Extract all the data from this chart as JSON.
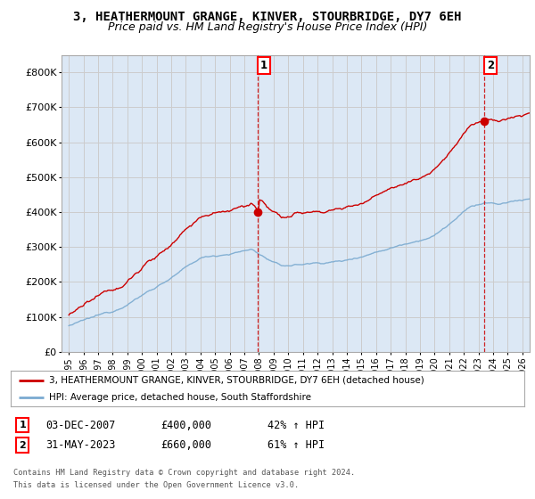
{
  "title": "3, HEATHERMOUNT GRANGE, KINVER, STOURBRIDGE, DY7 6EH",
  "subtitle": "Price paid vs. HM Land Registry's House Price Index (HPI)",
  "ylim": [
    0,
    850000
  ],
  "yticks": [
    0,
    100000,
    200000,
    300000,
    400000,
    500000,
    600000,
    700000,
    800000
  ],
  "ytick_labels": [
    "£0",
    "£100K",
    "£200K",
    "£300K",
    "£400K",
    "£500K",
    "£600K",
    "£700K",
    "£800K"
  ],
  "xlim_start": 1994.5,
  "xlim_end": 2026.5,
  "grid_color": "#cccccc",
  "background_color": "#ffffff",
  "plot_bg_color": "#dce8f5",
  "red_line_color": "#cc0000",
  "blue_line_color": "#7aaad0",
  "sale1_year": 2007.92,
  "sale1_price": 400000,
  "sale2_year": 2023.42,
  "sale2_price": 660000,
  "legend_red": "3, HEATHERMOUNT GRANGE, KINVER, STOURBRIDGE, DY7 6EH (detached house)",
  "legend_blue": "HPI: Average price, detached house, South Staffordshire",
  "footer": "Contains HM Land Registry data © Crown copyright and database right 2024.\nThis data is licensed under the Open Government Licence v3.0.",
  "title_fontsize": 10,
  "subtitle_fontsize": 9
}
